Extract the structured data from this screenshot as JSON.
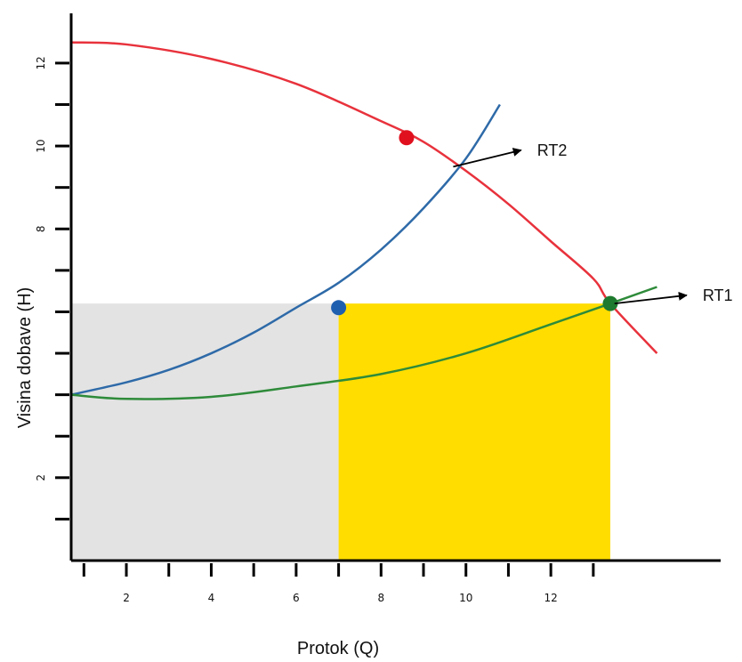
{
  "chart_data": {
    "type": "line",
    "xlabel": "Protok (Q)",
    "ylabel": "Visina dobave (H)",
    "xlim": [
      0.7,
      16
    ],
    "ylim": [
      0,
      13.2
    ],
    "x_ticks": [
      1,
      2,
      3,
      4,
      5,
      6,
      7,
      8,
      9,
      10,
      11,
      12,
      13
    ],
    "x_tick_labels": [
      {
        "x": 2,
        "label": "2"
      },
      {
        "x": 4,
        "label": "4"
      },
      {
        "x": 6,
        "label": "6"
      },
      {
        "x": 8,
        "label": "8"
      },
      {
        "x": 10,
        "label": "10"
      },
      {
        "x": 12,
        "label": "12"
      }
    ],
    "y_ticks": [
      1,
      2,
      3,
      4,
      5,
      6,
      7,
      8,
      9,
      10,
      11,
      12
    ],
    "y_tick_labels": [
      {
        "y": 2,
        "label": "2"
      },
      {
        "y": 8,
        "label": "8"
      },
      {
        "y": 10,
        "label": "10"
      },
      {
        "y": 12,
        "label": "12"
      }
    ],
    "series": [
      {
        "color": "#e8323c",
        "x": [
          0.7,
          2,
          4,
          6,
          8,
          9,
          10,
          11,
          12,
          13,
          13.4,
          14.5
        ],
        "y": [
          12.5,
          12.45,
          12.1,
          11.5,
          10.6,
          10.1,
          9.4,
          8.6,
          7.7,
          6.8,
          6.2,
          5.0
        ]
      },
      {
        "color": "#2e6aa8",
        "x": [
          0.7,
          2,
          3,
          4,
          5,
          6,
          7,
          8,
          9,
          10,
          10.8
        ],
        "y": [
          4.0,
          4.3,
          4.6,
          5.0,
          5.5,
          6.1,
          6.7,
          7.5,
          8.5,
          9.7,
          11.0
        ]
      },
      {
        "color": "#2e8b3a",
        "x": [
          0.7,
          2,
          4,
          6,
          8,
          10,
          12,
          13.4,
          14.5
        ],
        "y": [
          4.0,
          3.9,
          3.95,
          4.2,
          4.5,
          5.0,
          5.7,
          6.2,
          6.6
        ]
      }
    ],
    "points": [
      {
        "x": 8.6,
        "y": 10.2,
        "color": "#e0101e"
      },
      {
        "x": 7.0,
        "y": 6.1,
        "color": "#1f5fb0"
      },
      {
        "x": 13.4,
        "y": 6.2,
        "color": "#1e7a2e"
      }
    ],
    "regions": [
      {
        "x0": 0.7,
        "x1": 7.0,
        "y0": 0,
        "y1": 6.2,
        "color": "#e3e3e3"
      },
      {
        "x0": 7.0,
        "x1": 13.4,
        "y0": 0,
        "y1": 6.2,
        "color": "#ffdd00"
      }
    ],
    "annotations": [
      {
        "text": "RT2",
        "x_from": 9.7,
        "y_from": 9.5,
        "x_to": 11.3,
        "y_to": 9.9
      },
      {
        "text": "RT1",
        "x_from": 13.5,
        "y_from": 6.2,
        "x_to": 15.2,
        "y_to": 6.4
      }
    ]
  }
}
